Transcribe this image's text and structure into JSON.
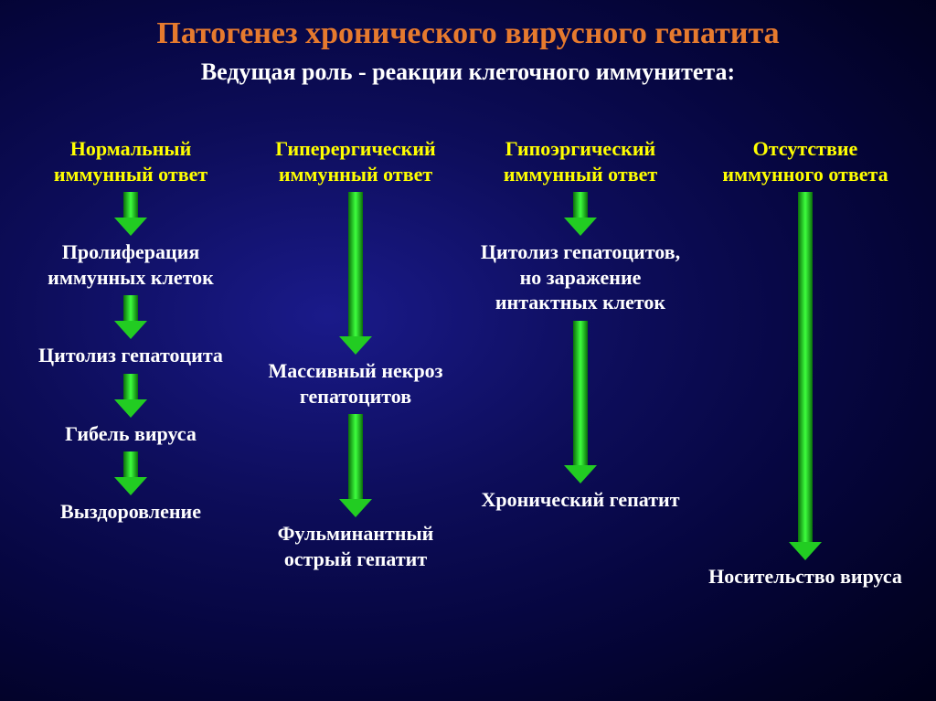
{
  "title": "Патогенез хронического вирусного гепатита",
  "title_color": "#e67a2e",
  "subtitle": "Ведущая роль - реакции клеточного иммунитета:",
  "subtitle_color": "#ffffff",
  "header_color": "#ffff00",
  "node_color": "#ffffff",
  "arrow_color": "#22cc22",
  "background_gradient": [
    "#1a1a8a",
    "#0d0d5a",
    "#060640",
    "#020225",
    "#000018"
  ],
  "font_family": "Times New Roman",
  "title_fontsize": 34,
  "subtitle_fontsize": 26,
  "node_fontsize": 22,
  "columns": [
    {
      "header": "Нормальный иммунный ответ",
      "steps": [
        "Пролиферация иммунных клеток",
        "Цитолиз гепатоцита",
        "Гибель вируса",
        "Выздоровление"
      ],
      "arrow_lengths": [
        "short",
        "short",
        "short",
        "short"
      ]
    },
    {
      "header": "Гиперергический иммунный ответ",
      "steps": [
        "Массивный некроз гепатоцитов",
        "Фульминантный острый гепатит"
      ],
      "arrow_lengths": [
        "long",
        "med"
      ]
    },
    {
      "header": "Гипоэргический иммунный ответ",
      "steps": [
        "Цитолиз гепатоцитов, но заражение интактных клеток",
        "Хронический гепатит"
      ],
      "arrow_lengths": [
        "short",
        "long"
      ]
    },
    {
      "header": "Отсутствие иммунного ответа",
      "steps": [
        "Носительство вируса"
      ],
      "arrow_lengths": [
        "vlong"
      ]
    }
  ]
}
